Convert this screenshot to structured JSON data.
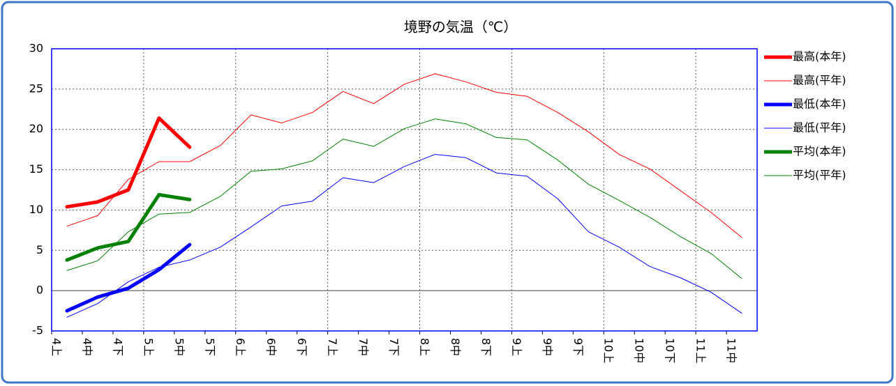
{
  "chart_data": {
    "type": "line",
    "title": "境野の気温（℃）",
    "categories": [
      "4上",
      "4中",
      "4下",
      "5上",
      "5中",
      "5下",
      "6上",
      "6中",
      "6下",
      "7上",
      "7中",
      "7下",
      "8上",
      "8中",
      "8下",
      "9上",
      "9中",
      "9下",
      "10上",
      "10中",
      "10下",
      "11上",
      "11中"
    ],
    "ylim": [
      -5,
      30
    ],
    "yticks": [
      -5,
      0,
      5,
      10,
      15,
      20,
      25,
      30
    ],
    "grid": true,
    "legend": "right",
    "series": [
      {
        "name": "最高(本年)",
        "color": "#ff0000",
        "linewidth": 5,
        "values": [
          10.4,
          11.0,
          12.5,
          21.4,
          17.8,
          null,
          null,
          null,
          null,
          null,
          null,
          null,
          null,
          null,
          null,
          null,
          null,
          null,
          null,
          null,
          null,
          null,
          null
        ]
      },
      {
        "name": "最高(平年)",
        "color": "#ff0000",
        "linewidth": 1,
        "values": [
          8.0,
          9.3,
          13.8,
          16.0,
          16.0,
          18.0,
          21.8,
          20.8,
          22.1,
          24.7,
          23.2,
          25.6,
          26.9,
          25.9,
          24.6,
          24.1,
          22.1,
          19.7,
          16.9,
          15.1,
          12.4,
          9.7,
          6.6
        ]
      },
      {
        "name": "最低(本年)",
        "color": "#0000ff",
        "linewidth": 5,
        "values": [
          -2.5,
          -0.8,
          0.3,
          2.6,
          5.7,
          null,
          null,
          null,
          null,
          null,
          null,
          null,
          null,
          null,
          null,
          null,
          null,
          null,
          null,
          null,
          null,
          null,
          null
        ]
      },
      {
        "name": "最低(平年)",
        "color": "#0000ff",
        "linewidth": 1,
        "values": [
          -3.3,
          -1.6,
          1.1,
          2.9,
          3.8,
          5.4,
          7.9,
          10.5,
          11.1,
          14.0,
          13.4,
          15.4,
          16.9,
          16.5,
          14.6,
          14.2,
          11.4,
          7.3,
          5.4,
          3.0,
          1.6,
          -0.2,
          -2.8
        ]
      },
      {
        "name": "平均(本年)",
        "color": "#008000",
        "linewidth": 5,
        "values": [
          3.8,
          5.3,
          6.1,
          11.9,
          11.3,
          null,
          null,
          null,
          null,
          null,
          null,
          null,
          null,
          null,
          null,
          null,
          null,
          null,
          null,
          null,
          null,
          null,
          null
        ]
      },
      {
        "name": "平均(平年)",
        "color": "#008000",
        "linewidth": 1,
        "values": [
          2.5,
          3.7,
          7.3,
          9.5,
          9.7,
          11.7,
          14.8,
          15.1,
          16.1,
          18.8,
          17.9,
          20.1,
          21.3,
          20.7,
          19.0,
          18.7,
          16.2,
          13.2,
          11.2,
          9.1,
          6.7,
          4.6,
          1.5
        ]
      }
    ]
  }
}
